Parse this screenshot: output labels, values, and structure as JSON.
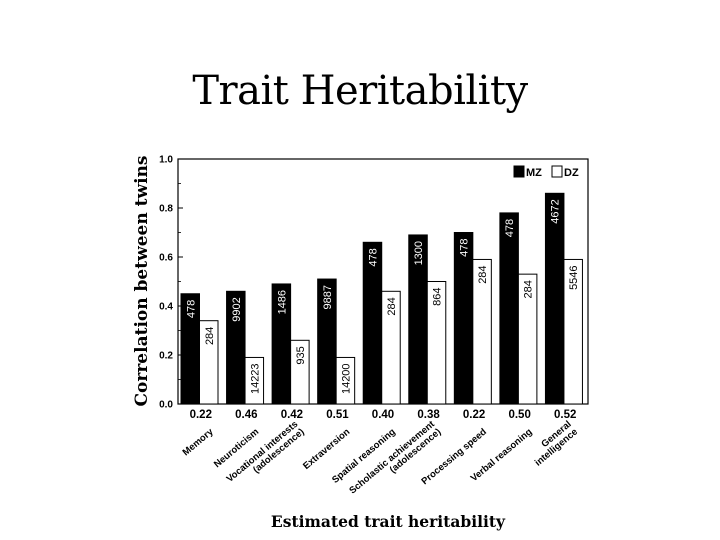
{
  "slide": {
    "title": "Trait Heritability"
  },
  "chart_data": {
    "type": "bar",
    "title": "Trait Heritability",
    "ylabel": "Correlation between twins",
    "xlabel": "Estimated trait heritability",
    "ylim": [
      0,
      1.0
    ],
    "yticks": [
      "0.0",
      "0.2",
      "0.4",
      "0.6",
      "0.8",
      "1.0"
    ],
    "legend": {
      "position": "top-right",
      "entries": [
        "MZ",
        "DZ"
      ]
    },
    "categories": [
      "Memory",
      "Neuroticism",
      "Vocational interests (adolescence)",
      "Extraversion",
      "Spatial reasoning",
      "Scholastic achievement (adolescence)",
      "Processing speed",
      "Verbal reasoning",
      "General intelligence"
    ],
    "heritability": [
      "0.22",
      "0.46",
      "0.42",
      "0.51",
      "0.40",
      "0.38",
      "0.22",
      "0.50",
      "0.52"
    ],
    "series": [
      {
        "name": "MZ",
        "color": "#000000",
        "values": [
          0.45,
          0.46,
          0.49,
          0.51,
          0.66,
          0.69,
          0.7,
          0.78,
          0.86
        ],
        "n": [
          "478",
          "9902",
          "1486",
          "9887",
          "478",
          "1300",
          "478",
          "478",
          "4672"
        ]
      },
      {
        "name": "DZ",
        "color": "#ffffff",
        "values": [
          0.34,
          0.19,
          0.26,
          0.19,
          0.46,
          0.5,
          0.59,
          0.53,
          0.59
        ],
        "n": [
          "284",
          "14223",
          "935",
          "14200",
          "284",
          "864",
          "284",
          "284",
          "5546"
        ]
      }
    ]
  }
}
